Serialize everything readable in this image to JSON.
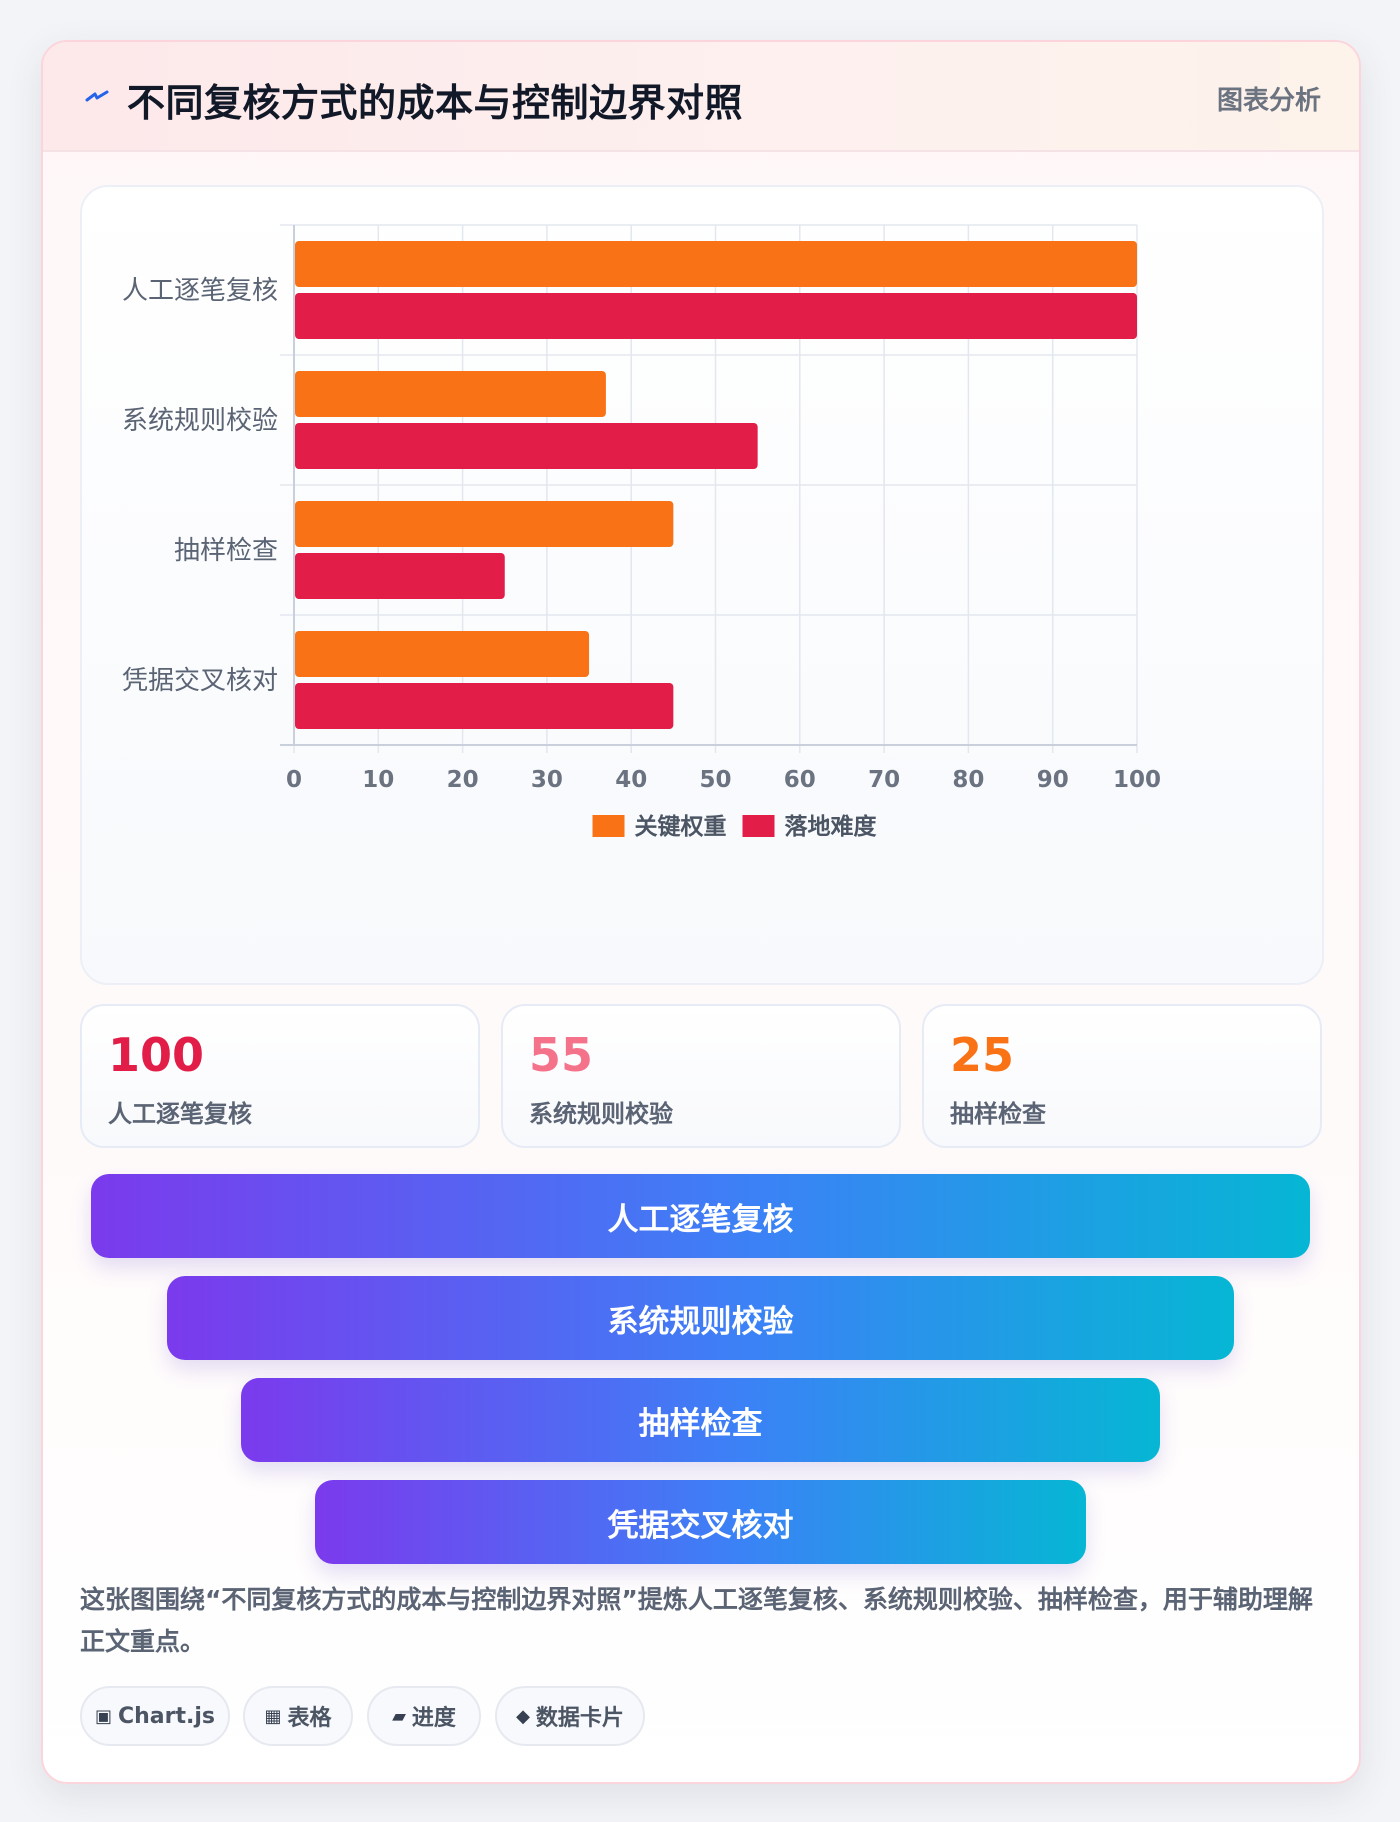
{
  "header": {
    "title": "不同复核方式的成本与控制边界对照",
    "tag": "图表分析"
  },
  "chart_data": {
    "type": "bar",
    "orientation": "horizontal",
    "categories": [
      "人工逐笔复核",
      "系统规则校验",
      "抽样检查",
      "凭据交叉核对"
    ],
    "series": [
      {
        "name": "关键权重",
        "values": [
          100,
          37,
          45,
          35
        ],
        "color": "#f97316"
      },
      {
        "name": "落地难度",
        "values": [
          100,
          55,
          25,
          45
        ],
        "color": "#e11d48"
      }
    ],
    "xlim": [
      0,
      100
    ],
    "xticks": [
      "0",
      "10",
      "20",
      "30",
      "40",
      "50",
      "60",
      "70",
      "80",
      "90",
      "100"
    ],
    "grid": true,
    "legend_position": "bottom"
  },
  "stats": [
    {
      "value": "100",
      "label": "人工逐笔复核",
      "color": "#e11d48"
    },
    {
      "value": "55",
      "label": "系统规则校验",
      "color": "#f4728a"
    },
    {
      "value": "25",
      "label": "抽样检查",
      "color": "#f97316"
    }
  ],
  "funnel": [
    "人工逐笔复核",
    "系统规则校验",
    "抽样检查",
    "凭据交叉核对"
  ],
  "description": "这张图围绕“不同复核方式的成本与控制边界对照”提炼人工逐笔复核、系统规则校验、抽样检查，用于辅助理解正文重点。",
  "chips": [
    {
      "icon": "▣",
      "label": "Chart.js"
    },
    {
      "icon": "▦",
      "label": "表格"
    },
    {
      "icon": "▰",
      "label": "进度"
    },
    {
      "icon": "◆",
      "label": "数据卡片"
    }
  ],
  "colors": {
    "accent_purple": "#7b3aed",
    "accent_cyan": "#06b6d4"
  }
}
